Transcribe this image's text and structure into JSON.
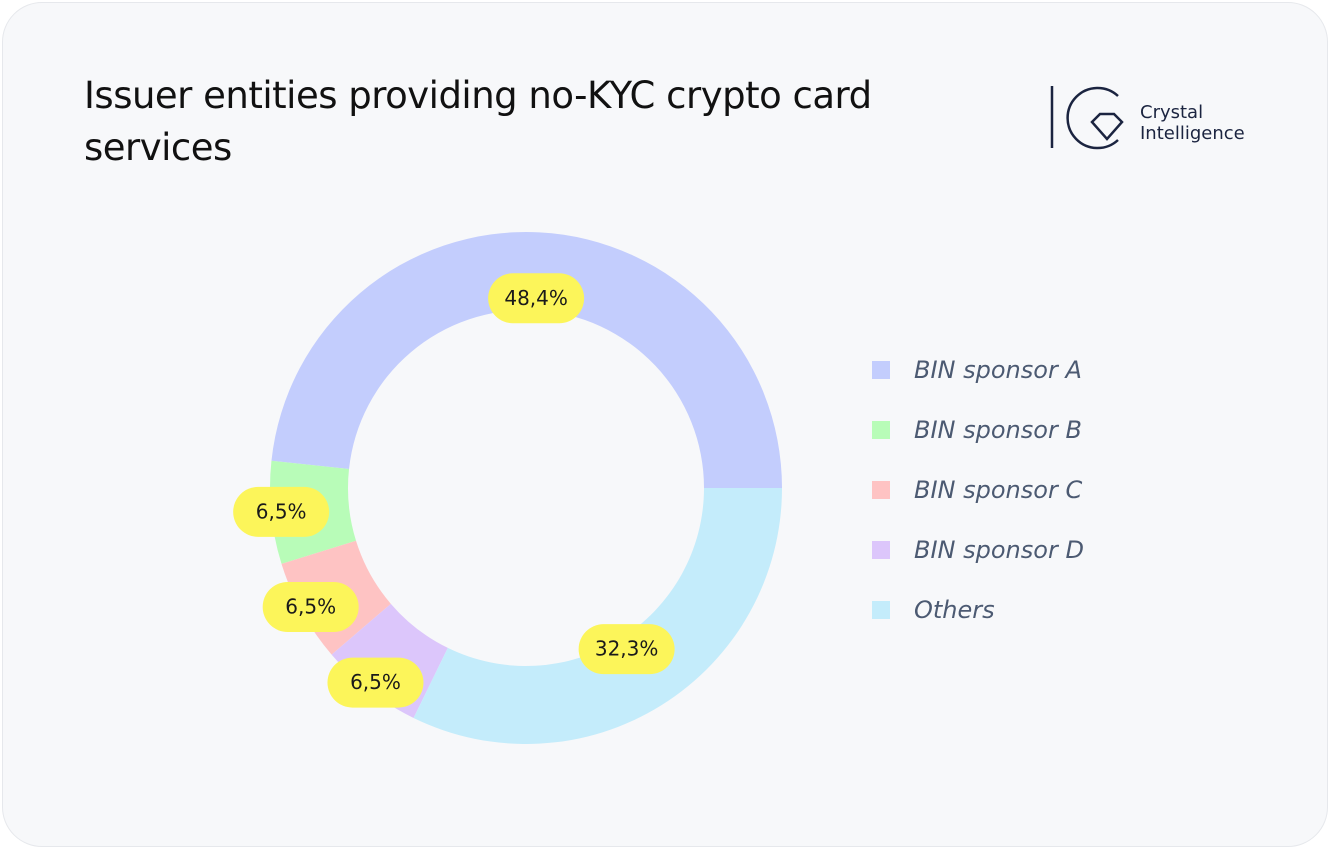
{
  "chart_data": {
    "type": "donut",
    "title": "Issuer entities providing no-KYC crypto card services",
    "brand": "Crystal Intelligence",
    "categories": [
      "BIN sponsor A",
      "BIN sponsor B",
      "BIN sponsor C",
      "BIN sponsor D",
      "Others"
    ],
    "values": [
      48.4,
      6.5,
      6.5,
      6.5,
      32.3
    ],
    "value_labels": [
      "48,4%",
      "6,5%",
      "6,5%",
      "6,5%",
      "32,3%"
    ],
    "colors": [
      "#c3cdfd",
      "#b8fcb8",
      "#fec3c3",
      "#dcc6fb",
      "#c4ecfb"
    ],
    "legend": "right"
  }
}
